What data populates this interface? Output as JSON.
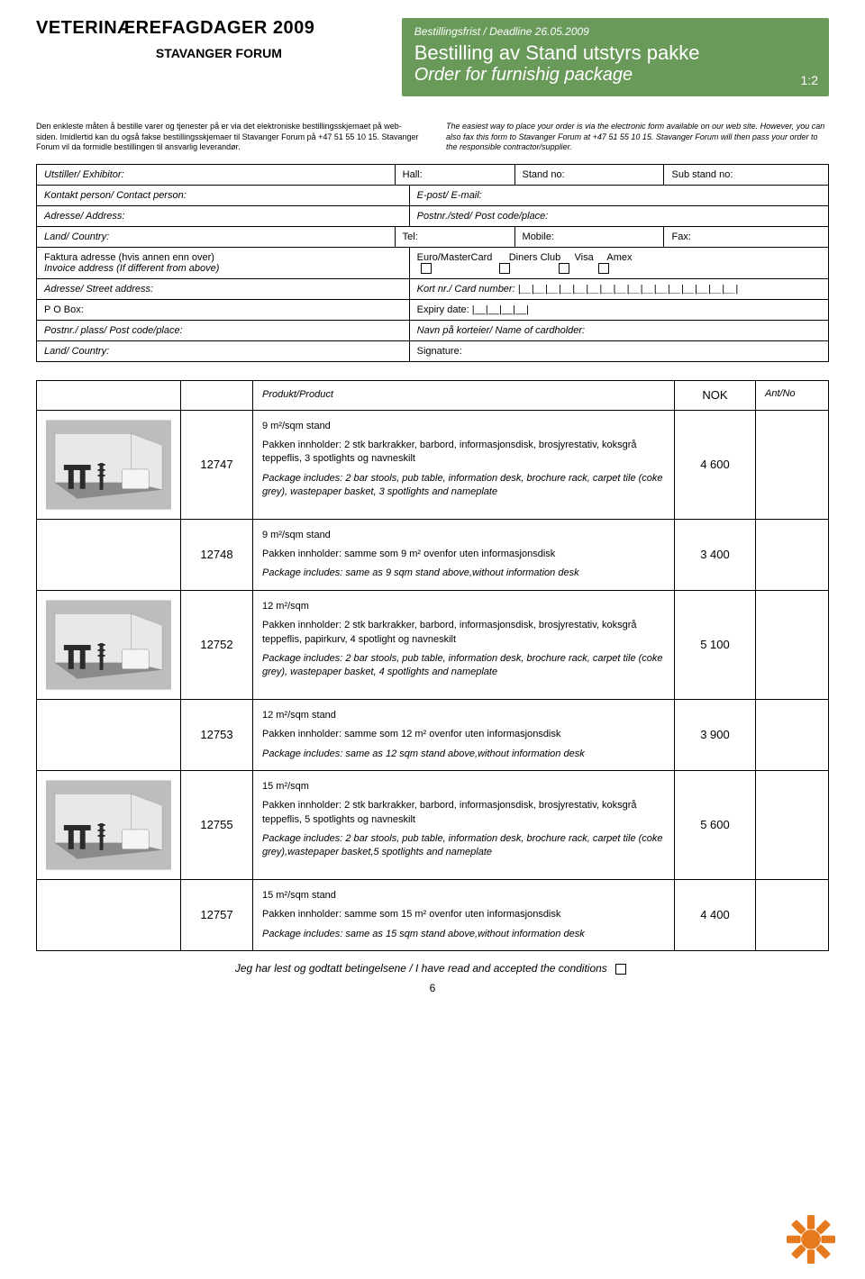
{
  "header": {
    "event_title": "VETERINÆREFAGDAGER 2009",
    "venue": "STAVANGER FORUM",
    "deadline": "Bestillingsfrist / Deadline 26.05.2009",
    "order_title_no": "Bestilling av Stand utstyrs pakke",
    "order_title_en": "Order for furnishig package",
    "page_indicator": "1:2",
    "header_bg": "#6a9a5a",
    "header_fg": "#ffffff"
  },
  "intro": {
    "no": "Den enkleste måten å bestille varer og tjenester på er via det elektroniske bestillingsskjemaet på web-siden. Imidlertid kan du også fakse bestillingsskjemaer til Stavanger Forum på +47 51 55 10 15. Stavanger Forum vil da formidle bestillingen til ansvarlig leverandør.",
    "en": "The easiest way to place your order is via the electronic form available on our web site. However, you can also fax this form to Stavanger Forum at +47 51 55 10 15. Stavanger Forum will then pass your order to the responsible contractor/supplier."
  },
  "form": {
    "exhibitor": "Utstiller/ Exhibitor:",
    "hall": "Hall:",
    "standno": "Stand no:",
    "substand": "Sub stand no:",
    "contact": "Kontakt person/ Contact person:",
    "email": "E-post/ E-mail:",
    "address": "Adresse/ Address:",
    "postcode": "Postnr./sted/ Post code/place:",
    "country": "Land/ Country:",
    "tel": "Tel:",
    "mobile": "Mobile:",
    "fax": "Fax:",
    "invoice_no": "Faktura adresse (hvis annen enn over)",
    "invoice_en": "Invoice address (If different from above)",
    "card_euro": "Euro/MasterCard",
    "card_diners": "Diners Club",
    "card_visa": "Visa",
    "card_amex": "Amex",
    "street": "Adresse/ Street address:",
    "cardno": "Kort nr./ Card number: |__|__|__|__|__|__|__|__|__|__|__|__|__|__|__|__|",
    "pobox": "P O Box:",
    "expiry": "Expiry date: |__|__|__|__|",
    "postplace": "Postnr./ plass/ Post code/place:",
    "cardholder": "Navn på korteier/ Name of cardholder:",
    "country2": "Land/ Country:",
    "signature": "Signature:"
  },
  "table_head": {
    "product": "Produkt/Product",
    "nok": "NOK",
    "qty": "Ant/No"
  },
  "products": [
    {
      "has_image": true,
      "code": "12747",
      "heading": "9 m²/sqm stand",
      "desc_no": "Pakken innholder: 2 stk barkrakker, barbord, informasjonsdisk, brosjyrestativ, koksgrå teppeflis, 3 spotlights og navneskilt",
      "desc_en": "Package includes: 2 bar stools, pub table, information desk, brochure rack, carpet tile (coke grey), wastepaper basket, 3 spotlights and nameplate",
      "price": "4 600"
    },
    {
      "has_image": false,
      "code": "12748",
      "heading": "9 m²/sqm stand",
      "desc_no": "Pakken innholder: samme som 9 m² ovenfor uten informasjonsdisk",
      "desc_en": "Package includes: same as 9 sqm stand above,without information desk",
      "price": "3 400"
    },
    {
      "has_image": true,
      "code": "12752",
      "heading": "12 m²/sqm",
      "desc_no": "Pakken innholder: 2 stk barkrakker, barbord, informasjonsdisk, brosjyrestativ, koksgrå teppeflis, papirkurv, 4 spotlight og navneskilt",
      "desc_en": "Package includes: 2 bar stools, pub table, information desk, brochure rack, carpet tile (coke grey), wastepaper basket, 4 spotlights and nameplate",
      "price": "5 100"
    },
    {
      "has_image": false,
      "code": "12753",
      "heading": "12 m²/sqm stand",
      "desc_no": "Pakken innholder: samme som 12 m² ovenfor uten informasjonsdisk",
      "desc_en": "Package includes: same as 12 sqm stand above,without information desk",
      "price": "3 900"
    },
    {
      "has_image": true,
      "code": "12755",
      "heading": "15 m²/sqm",
      "desc_no": "Pakken innholder: 2 stk barkrakker, barbord, informasjonsdisk, brosjyrestativ, koksgrå teppeflis, 5 spotlights og navneskilt",
      "desc_en": "Package includes: 2 bar stools, pub table, information desk, brochure rack, carpet tile (coke grey),wastepaper basket,5 spotlights and nameplate",
      "price": "5 600"
    },
    {
      "has_image": false,
      "code": "12757",
      "heading": "15 m²/sqm stand",
      "desc_no": "Pakken innholder: samme som 15 m² ovenfor uten informasjonsdisk",
      "desc_en": "Package includes: same as 15 sqm stand above,without information desk",
      "price": "4 400"
    }
  ],
  "footer": {
    "accept": "Jeg har lest og godtatt betingelsene / I have read and accepted the conditions",
    "pagenum": "6"
  },
  "colors": {
    "cog": "#e67a1f",
    "border": "#000000",
    "booth_bg": "#bdbdbd"
  }
}
